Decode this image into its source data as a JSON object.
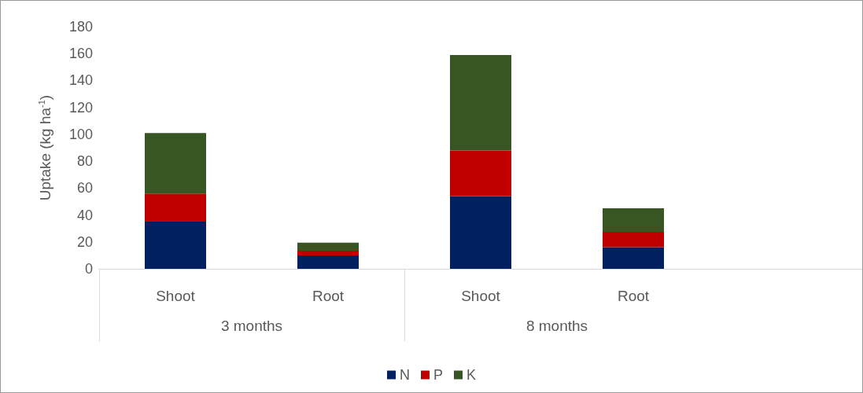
{
  "chart_data": {
    "type": "bar",
    "stacked": true,
    "ylabel": "Uptake (kg ha$^{-1}$)",
    "categories": [
      "Shoot",
      "Root",
      "Shoot",
      "Root",
      null
    ],
    "annotations": [
      "3 months",
      "8 months"
    ],
    "series": [
      {
        "name": "N",
        "color": "#002060",
        "values": [
          35,
          10,
          54,
          16,
          null
        ]
      },
      {
        "name": "P",
        "color": "#c00000",
        "values": [
          21,
          3.5,
          34,
          11.5,
          null
        ]
      },
      {
        "name": "K",
        "color": "#375623",
        "values": [
          45,
          6,
          71,
          17.5,
          null
        ]
      }
    ],
    "ylim": [
      0,
      180
    ],
    "yticks": [
      0,
      20,
      40,
      60,
      80,
      100,
      120,
      140,
      160,
      180
    ],
    "grid": false,
    "legend": "bottom"
  }
}
